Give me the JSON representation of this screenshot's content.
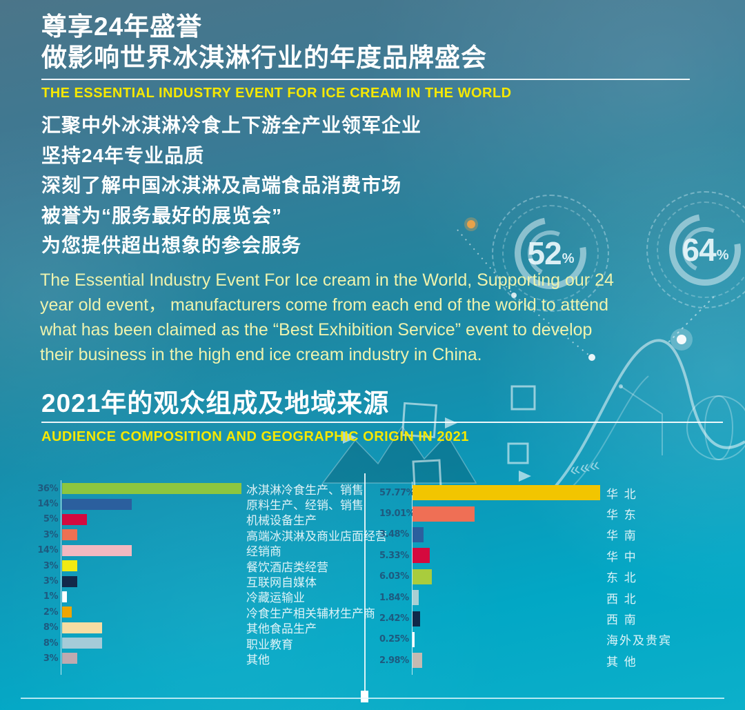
{
  "hero": {
    "title_line1": "尊享24年盛誉",
    "title_line2": "做影响世界冰淇淋行业的年度品牌盛会",
    "subtitle_en": "THE ESSENTIAL INDUSTRY EVENT FOR ICE CREAM IN THE WORLD",
    "bullets": [
      "汇聚中外冰淇淋冷食上下游全产业领军企业",
      "坚持24年专业品质",
      "深刻了解中国冰淇淋及高端食品消费市场",
      "被誉为“服务最好的展览会”",
      "为您提供超出想象的参会服务"
    ],
    "paragraph_en": "The Essential Industry Event For Ice cream in the World, Supporting our 24 year old event， manufacturers come from each end of the world to attend what has been claimed as the “Best Exhibition Service” event to develop their business in the high end ice cream industry in China."
  },
  "section2": {
    "title": "2021年的观众组成及地域来源",
    "subtitle_en": "AUDIENCE COMPOSITION AND GEOGRAPHIC ORIGIN IN 2021"
  },
  "gauges": [
    {
      "value": "52",
      "unit": "%"
    },
    {
      "value": "64",
      "unit": "%"
    }
  ],
  "chart_data": [
    {
      "type": "bar",
      "orientation": "horizontal",
      "unit": "%",
      "categories": [
        "冰淇淋冷食生产、销售",
        "原料生产、经销、销售",
        "机械设备生产",
        "高端冰淇淋及商业店面经营",
        "经销商",
        "餐饮酒店类经营",
        "互联网自媒体",
        "冷藏运输业",
        "冷食生产相关辅材生产商",
        "其他食品生产",
        "职业教育",
        "其他"
      ],
      "values": [
        36,
        14,
        5,
        3,
        14,
        3,
        3,
        1,
        2,
        8,
        8,
        3
      ],
      "value_labels": [
        "36%",
        "14%",
        "5%",
        "3%",
        "14%",
        "3%",
        "3%",
        "1%",
        "2%",
        "8%",
        "8%",
        "3%"
      ],
      "bar_colors": [
        "#8dc63f",
        "#2b5f9e",
        "#d30a3f",
        "#ee7052",
        "#f2b8c0",
        "#f2ea12",
        "#13294a",
        "#ffffff",
        "#efa500",
        "#f7dca2",
        "#a5cbd8",
        "#bfaab0"
      ]
    },
    {
      "type": "bar",
      "orientation": "horizontal",
      "unit": "%",
      "categories": [
        "华 北",
        "华 东",
        "华 南",
        "华 中",
        "东 北",
        "西 北",
        "西 南",
        "海外及贵宾",
        "其 他"
      ],
      "values": [
        57.77,
        19.01,
        3.48,
        5.33,
        6.03,
        1.84,
        2.42,
        0.25,
        2.98
      ],
      "value_labels": [
        "57.77%",
        "19.01%",
        "3.48%",
        "5.33%",
        "6.03%",
        "1.84%",
        "2.42%",
        "0.25%",
        "2.98%"
      ],
      "bar_colors": [
        "#f2c500",
        "#ef6f55",
        "#2b5f9e",
        "#d5093e",
        "#a9cc3d",
        "#a8cfd3",
        "#10294a",
        "#ffffff",
        "#c4bab2"
      ]
    }
  ]
}
